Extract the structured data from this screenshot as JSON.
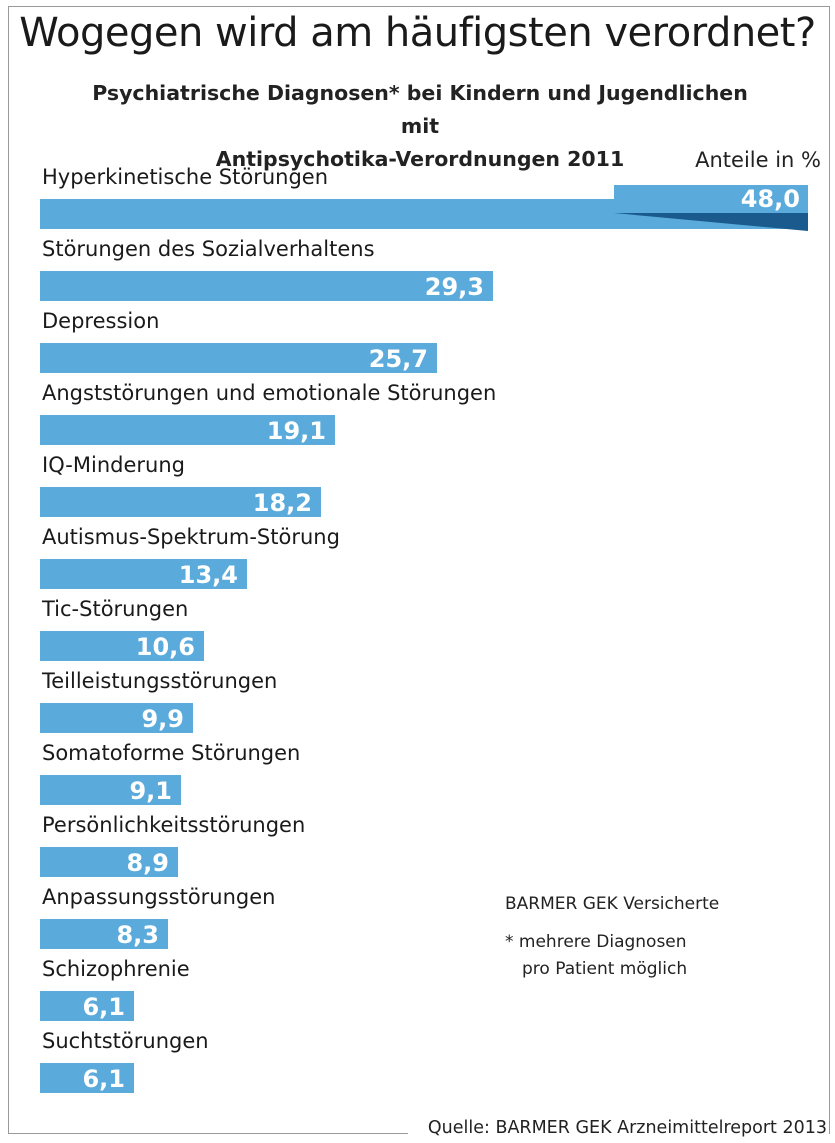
{
  "title": "Wogegen wird am häufigsten verordnet?",
  "subtitle_line1": "Psychiatrische Diagnosen* bei Kindern und Jugendlichen mit",
  "subtitle_line2": "Antipsychotika-Verordnungen 2011",
  "unit_label": "Anteile in %",
  "note_insured": "BARMER GEK Versicherte",
  "note_footnote_line1": "* mehrere Diagnosen",
  "note_footnote_line2": "pro Patient möglich",
  "source": "Quelle: BARMER GEK Arzneimittelreport 2013",
  "colors": {
    "bar": "#5aaadc",
    "callout_dark": "#1a5a8c",
    "value_text": "#ffffff"
  },
  "chart_data": {
    "type": "bar",
    "orientation": "horizontal",
    "title": "Wogegen wird am häufigsten verordnet?",
    "subtitle": "Psychiatrische Diagnosen* bei Kindern und Jugendlichen mit Antipsychotika-Verordnungen 2011",
    "unit": "Anteile in %",
    "categories": [
      "Hyperkinetische Störungen",
      "Störungen des Sozialverhaltens",
      "Depression",
      "Angststörungen und emotionale Störungen",
      "IQ-Minderung",
      "Autismus-Spektrum-Störung",
      "Tic-Störungen",
      "Teilleistungsstörungen",
      "Somatoforme Störungen",
      "Persönlichkeitsstörungen",
      "Anpassungsstörungen",
      "Schizophrenie",
      "Suchtstörungen"
    ],
    "values": [
      48.0,
      29.3,
      25.7,
      19.1,
      18.2,
      13.4,
      10.6,
      9.9,
      9.1,
      8.9,
      8.3,
      6.1,
      6.1
    ],
    "value_labels": [
      "48,0",
      "29,3",
      "25,7",
      "19,1",
      "18,2",
      "13,4",
      "10,6",
      "9,9",
      "9,1",
      "8,9",
      "8,3",
      "6,1",
      "6,1"
    ],
    "grid": false,
    "legend": "none"
  }
}
